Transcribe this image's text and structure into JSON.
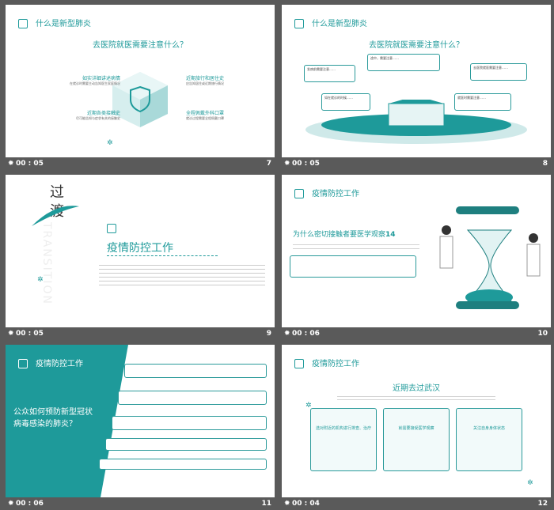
{
  "colors": {
    "accent": "#1e9a9a",
    "bar": "#5a5a5a"
  },
  "slides": [
    {
      "header": "什么是新型肺炎",
      "question": "去医院就医需要注意什么？",
      "items": [
        {
          "title": "如实详细讲述病情",
          "text": "在就诊时需要主动告知医生家庭情况"
        },
        {
          "title": "近期各类接触史",
          "text": "尽可能告知与症状有关的接触史"
        },
        {
          "title": "近期旅行和居住史",
          "text": "应告知居住或近期旅行情况"
        },
        {
          "title": "全程佩戴外科口罩",
          "text": "就诊过程需要全程佩戴口罩"
        }
      ],
      "duration": "00 : 05",
      "number": "7"
    },
    {
      "header": "什么是新型肺炎",
      "question": "去医院就医需要注意什么？",
      "boxes": [
        "发病前需要注意……",
        "途中，需要注意……",
        "如在就诊的时候……",
        "就医时需要注意……",
        "去医院就医需要注意……"
      ],
      "duration": "00 : 05",
      "number": "8"
    },
    {
      "vertical": "过渡",
      "watermark": "TRANSITION",
      "title": "疫情防控工作",
      "duration": "00 : 05",
      "number": "9"
    },
    {
      "header": "疫情防控工作",
      "question": "为什么密切接触者要医学观察",
      "qnum": "14",
      "duration": "00 : 06",
      "number": "10"
    },
    {
      "header": "疫情防控工作",
      "question": "公众如何预防新型冠状病毒感染的肺炎？",
      "duration": "00 : 06",
      "number": "11"
    },
    {
      "header": "疫情防控工作",
      "title": "近期去过武汉",
      "cards": [
        {
          "title": "选对附近的机构进行排查、治疗"
        },
        {
          "title": "就需要接受医学观察"
        },
        {
          "title": "关注自身身体状态"
        }
      ],
      "duration": "00 : 04",
      "number": "12"
    }
  ]
}
